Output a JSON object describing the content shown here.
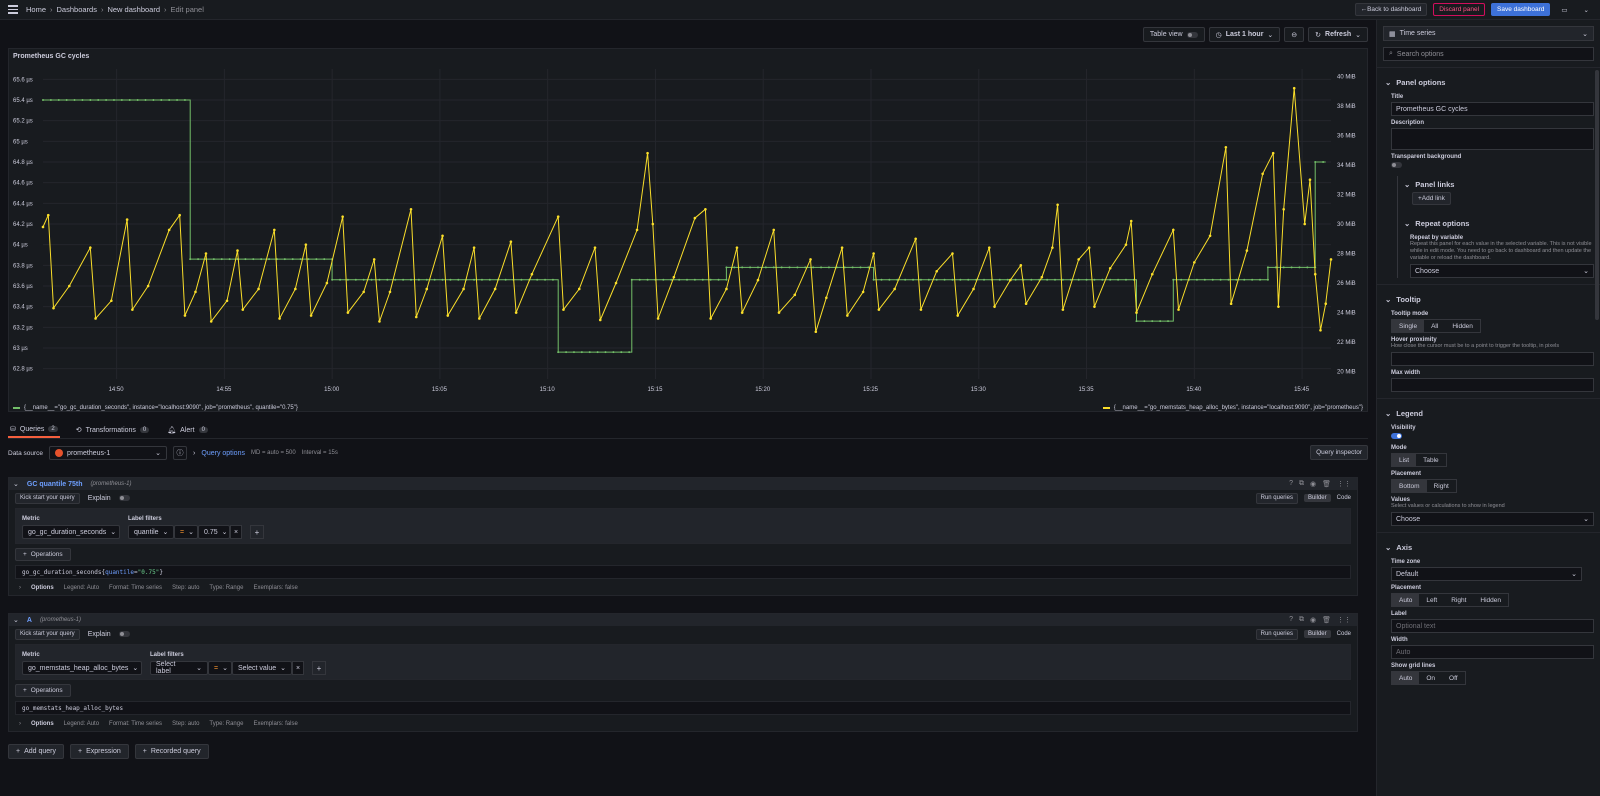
{
  "breadcrumb": {
    "home": "Home",
    "dashboards": "Dashboards",
    "new_dashboard": "New dashboard",
    "current": "Edit panel"
  },
  "top_actions": {
    "back": "Back to dashboard",
    "discard": "Discard panel",
    "save": "Save dashboard"
  },
  "panel_toolbar": {
    "table_view": "Table view",
    "time_range": "Last 1 hour",
    "refresh": "Refresh"
  },
  "colors": {
    "green": "#73bf69",
    "yellow": "#fade2a",
    "accent": "#3d71d9",
    "tab_active": "#f55f3e"
  },
  "chart_data": {
    "type": "line",
    "title": "Prometheus GC cycles",
    "x_ticks": [
      "14:50",
      "14:55",
      "15:00",
      "15:05",
      "15:10",
      "15:15",
      "15:20",
      "15:25",
      "15:30",
      "15:35",
      "15:40",
      "15:45"
    ],
    "y_left_ticks": [
      "65.6 µs",
      "65.4 µs",
      "65.2 µs",
      "65 µs",
      "64.8 µs",
      "64.6 µs",
      "64.4 µs",
      "64.2 µs",
      "64 µs",
      "63.8 µs",
      "63.6 µs",
      "63.4 µs",
      "63.2 µs",
      "63 µs",
      "62.8 µs"
    ],
    "y_right_ticks": [
      "40 MiB",
      "38 MiB",
      "36 MiB",
      "34 MiB",
      "32 MiB",
      "30 MiB",
      "28 MiB",
      "26 MiB",
      "24 MiB",
      "22 MiB",
      "20 MiB"
    ],
    "series": [
      {
        "name": "{__name__=\"go_gc_duration_seconds\", instance=\"localhost:9090\", job=\"prometheus\", quantile=\"0.75\"}",
        "color": "#73bf69",
        "axis": "left",
        "unit": "µs",
        "points": [
          [
            0,
            65.4
          ],
          [
            28,
            65.4
          ],
          [
            28,
            63.86
          ],
          [
            55,
            63.86
          ],
          [
            55,
            63.66
          ],
          [
            98,
            63.66
          ],
          [
            98,
            62.96
          ],
          [
            112,
            62.96
          ],
          [
            112,
            63.66
          ],
          [
            130,
            63.66
          ],
          [
            130,
            63.78
          ],
          [
            158,
            63.78
          ],
          [
            158,
            63.66
          ],
          [
            208,
            63.66
          ],
          [
            208,
            63.26
          ],
          [
            215,
            63.26
          ],
          [
            215,
            63.66
          ],
          [
            233,
            63.66
          ],
          [
            233,
            63.78
          ],
          [
            242,
            63.78
          ],
          [
            242,
            64.8
          ],
          [
            244,
            64.8
          ]
        ]
      },
      {
        "name": "{__name__=\"go_memstats_heap_alloc_bytes\", instance=\"localhost:9090\", job=\"prometheus\"}",
        "color": "#fade2a",
        "axis": "right",
        "unit": "MiB",
        "points": [
          [
            0,
            29.8
          ],
          [
            1,
            30.6
          ],
          [
            2,
            24.3
          ],
          [
            5,
            25.8
          ],
          [
            9,
            28.4
          ],
          [
            10,
            23.6
          ],
          [
            13,
            24.8
          ],
          [
            16,
            30.3
          ],
          [
            17,
            24.2
          ],
          [
            20,
            25.8
          ],
          [
            24,
            29.6
          ],
          [
            26,
            30.6
          ],
          [
            27,
            23.8
          ],
          [
            29,
            25.4
          ],
          [
            31,
            28.0
          ],
          [
            32,
            23.4
          ],
          [
            35,
            24.8
          ],
          [
            37,
            28.2
          ],
          [
            38,
            24.2
          ],
          [
            41,
            25.6
          ],
          [
            44,
            29.6
          ],
          [
            45,
            23.6
          ],
          [
            48,
            25.6
          ],
          [
            50,
            28.6
          ],
          [
            51,
            23.8
          ],
          [
            54,
            26.0
          ],
          [
            57,
            30.5
          ],
          [
            58,
            24.0
          ],
          [
            61,
            25.4
          ],
          [
            63,
            27.6
          ],
          [
            64,
            23.4
          ],
          [
            66,
            25.4
          ],
          [
            70,
            31.0
          ],
          [
            71,
            23.7
          ],
          [
            73,
            25.6
          ],
          [
            76,
            29.2
          ],
          [
            77,
            23.8
          ],
          [
            80,
            25.6
          ],
          [
            82,
            28.4
          ],
          [
            83,
            23.6
          ],
          [
            86,
            25.6
          ],
          [
            89,
            28.8
          ],
          [
            90,
            24.0
          ],
          [
            93,
            26.6
          ],
          [
            98,
            30.5
          ],
          [
            99,
            24.2
          ],
          [
            102,
            25.6
          ],
          [
            105,
            28.4
          ],
          [
            106,
            23.5
          ],
          [
            109,
            26.0
          ],
          [
            113,
            29.6
          ],
          [
            115,
            34.8
          ],
          [
            116,
            30.0
          ],
          [
            117,
            23.6
          ],
          [
            120,
            26.4
          ],
          [
            124,
            30.4
          ],
          [
            126,
            31.0
          ],
          [
            127,
            23.6
          ],
          [
            130,
            25.6
          ],
          [
            132,
            28.4
          ],
          [
            133,
            24.0
          ],
          [
            136,
            26.2
          ],
          [
            139,
            29.6
          ],
          [
            140,
            24.0
          ],
          [
            143,
            25.2
          ],
          [
            146,
            27.6
          ],
          [
            147,
            22.7
          ],
          [
            149,
            25.0
          ],
          [
            152,
            28.4
          ],
          [
            153,
            23.8
          ],
          [
            156,
            25.4
          ],
          [
            158,
            28.0
          ],
          [
            159,
            24.2
          ],
          [
            162,
            25.6
          ],
          [
            166,
            29.0
          ],
          [
            167,
            24.2
          ],
          [
            170,
            26.8
          ],
          [
            173,
            28.0
          ],
          [
            174,
            23.8
          ],
          [
            177,
            25.6
          ],
          [
            180,
            28.4
          ],
          [
            181,
            24.4
          ],
          [
            184,
            26.2
          ],
          [
            186,
            27.2
          ],
          [
            187,
            24.6
          ],
          [
            190,
            26.4
          ],
          [
            192,
            28.4
          ],
          [
            193,
            31.3
          ],
          [
            194,
            24.2
          ],
          [
            197,
            27.6
          ],
          [
            199,
            28.4
          ],
          [
            200,
            24.4
          ],
          [
            203,
            27.0
          ],
          [
            206,
            28.6
          ],
          [
            207,
            30.2
          ],
          [
            208,
            24.0
          ],
          [
            211,
            26.6
          ],
          [
            215,
            29.6
          ],
          [
            216,
            24.2
          ],
          [
            219,
            27.4
          ],
          [
            222,
            29.2
          ],
          [
            225,
            35.2
          ],
          [
            226,
            24.6
          ],
          [
            229,
            28.2
          ],
          [
            232,
            33.4
          ],
          [
            234,
            34.8
          ],
          [
            235,
            24.4
          ],
          [
            236,
            31.0
          ],
          [
            238,
            39.2
          ],
          [
            240,
            30.0
          ],
          [
            241,
            33.0
          ],
          [
            242,
            26.6
          ],
          [
            243,
            22.8
          ],
          [
            244,
            24.6
          ],
          [
            245,
            27.6
          ]
        ]
      }
    ],
    "x_range": [
      0,
      245
    ],
    "y_left_range": [
      62.7,
      65.7
    ],
    "y_right_range": [
      19.5,
      40.5
    ]
  },
  "tabs": [
    {
      "label": "Queries",
      "count": "2"
    },
    {
      "label": "Transformations",
      "count": "0"
    },
    {
      "label": "Alert",
      "count": "0"
    }
  ],
  "datasource": {
    "label": "Data source",
    "value": "prometheus-1",
    "query_options": "Query options",
    "md": "MD = auto = 500",
    "interval": "Interval = 15s",
    "inspector": "Query inspector"
  },
  "queries": [
    {
      "name": "GC quantile 75th",
      "ds": "(prometheus-1)",
      "kick": "Kick start your query",
      "explain": "Explain",
      "run": "Run queries",
      "builder": "Builder",
      "code": "Code",
      "metric_label": "Metric",
      "metric": "go_gc_duration_seconds",
      "filters_label": "Label filters",
      "filter_label": "quantile",
      "filter_op": "=",
      "filter_value": "0.75",
      "operations": "Operations",
      "expr_metric": "go_gc_duration_seconds{",
      "expr_label": "quantile",
      "expr_eq": "=",
      "expr_val": "\"0.75\"",
      "expr_end": "}",
      "options": "Options",
      "opt_legend": "Legend: Auto",
      "opt_format": "Format: Time series",
      "opt_step": "Step: auto",
      "opt_type": "Type: Range",
      "opt_ex": "Exemplars: false"
    },
    {
      "name": "A",
      "ds": "(prometheus-1)",
      "kick": "Kick start your query",
      "explain": "Explain",
      "run": "Run queries",
      "builder": "Builder",
      "code": "Code",
      "metric_label": "Metric",
      "metric": "go_memstats_heap_alloc_bytes",
      "filters_label": "Label filters",
      "filter_label": "Select label",
      "filter_op": "=",
      "filter_value": "Select value",
      "operations": "Operations",
      "expr_metric": "go_memstats_heap_alloc_bytes",
      "expr_label": "",
      "expr_eq": "",
      "expr_val": "",
      "expr_end": "",
      "options": "Options",
      "opt_legend": "Legend: Auto",
      "opt_format": "Format: Time series",
      "opt_step": "Step: auto",
      "opt_type": "Type: Range",
      "opt_ex": "Exemplars: false"
    }
  ],
  "add": {
    "query": "Add query",
    "expression": "Expression",
    "recorded": "Recorded query"
  },
  "sidebar": {
    "visualization": "Time series",
    "search_placeholder": "Search options",
    "panel_options": "Panel options",
    "title_label": "Title",
    "title_value": "Prometheus GC cycles",
    "description_label": "Description",
    "transparent_label": "Transparent background",
    "panel_links": "Panel links",
    "add_link": "Add link",
    "repeat_options": "Repeat options",
    "repeat_by": "Repeat by variable",
    "repeat_desc": "Repeat this panel for each value in the selected variable. This is not visible while in edit mode. You need to go back to dashboard and then update the variable or reload the dashboard.",
    "choose": "Choose",
    "tooltip": "Tooltip",
    "tooltip_mode": "Tooltip mode",
    "tt_opts": [
      "Single",
      "All",
      "Hidden"
    ],
    "hover_label": "Hover proximity",
    "hover_desc": "How close the cursor must be to a point to trigger the tooltip, in pixels",
    "max_width": "Max width",
    "legend": "Legend",
    "visibility": "Visibility",
    "mode": "Mode",
    "mode_opts": [
      "List",
      "Table"
    ],
    "placement": "Placement",
    "placement_opts": [
      "Bottom",
      "Right"
    ],
    "values": "Values",
    "values_desc": "Select values or calculations to show in legend",
    "values_choose": "Choose",
    "axis": "Axis",
    "time_zone": "Time zone",
    "time_zone_value": "Default",
    "axis_placement": "Placement",
    "axis_opts": [
      "Auto",
      "Left",
      "Right",
      "Hidden"
    ],
    "axis_label": "Label",
    "axis_label_ph": "Optional text",
    "width": "Width",
    "width_ph": "Auto",
    "grid": "Show grid lines",
    "grid_opts": [
      "Auto",
      "On",
      "Off"
    ]
  }
}
